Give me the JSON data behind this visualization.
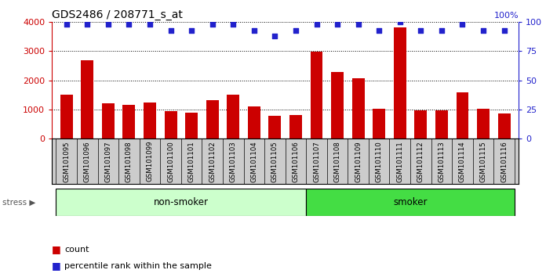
{
  "title": "GDS2486 / 208771_s_at",
  "samples": [
    "GSM101095",
    "GSM101096",
    "GSM101097",
    "GSM101098",
    "GSM101099",
    "GSM101100",
    "GSM101101",
    "GSM101102",
    "GSM101103",
    "GSM101104",
    "GSM101105",
    "GSM101106",
    "GSM101107",
    "GSM101108",
    "GSM101109",
    "GSM101110",
    "GSM101111",
    "GSM101112",
    "GSM101113",
    "GSM101114",
    "GSM101115",
    "GSM101116"
  ],
  "counts": [
    1520,
    2680,
    1220,
    1160,
    1250,
    940,
    900,
    1310,
    1510,
    1110,
    790,
    810,
    2990,
    2300,
    2060,
    1020,
    3830,
    970,
    970,
    1590,
    1020,
    870
  ],
  "percentile_ranks": [
    98,
    98,
    98,
    98,
    98,
    93,
    93,
    98,
    98,
    93,
    88,
    93,
    98,
    98,
    98,
    93,
    100,
    93,
    93,
    98,
    93,
    93
  ],
  "non_smoker_count": 12,
  "smoker_count": 10,
  "bar_color": "#cc0000",
  "dot_color": "#2222cc",
  "non_smoker_color": "#ccffcc",
  "smoker_color": "#44dd44",
  "xtick_bg_color": "#cccccc",
  "bg_color": "#ffffff",
  "ylim_left": [
    0,
    4000
  ],
  "ylim_right": [
    0,
    100
  ],
  "yticks_left": [
    0,
    1000,
    2000,
    3000,
    4000
  ],
  "yticks_right": [
    0,
    25,
    50,
    75,
    100
  ],
  "left_axis_color": "#cc0000",
  "right_axis_color": "#2222cc"
}
